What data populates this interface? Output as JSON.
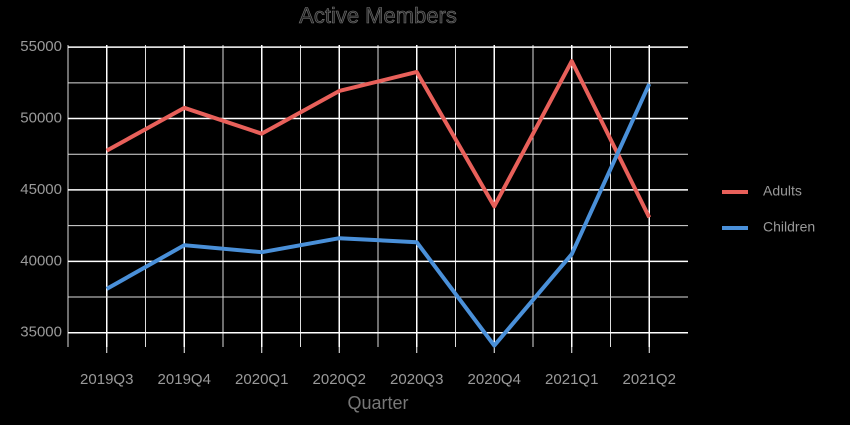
{
  "chart_data": {
    "type": "line",
    "title": "Active Members",
    "x_label": "Quarter",
    "categories": [
      "2019Q3",
      "2019Q4",
      "2020Q1",
      "2020Q2",
      "2020Q3",
      "2020Q4",
      "2021Q1",
      "2021Q2"
    ],
    "series": [
      {
        "name": "Adults",
        "color": "#e8605a",
        "values": [
          47750,
          50750,
          48940,
          51930,
          53260,
          43850,
          54020,
          43080
        ]
      },
      {
        "name": "Children",
        "color": "#4a90d9",
        "values": [
          38070,
          41130,
          40640,
          41620,
          41340,
          34100,
          40500,
          52420
        ]
      }
    ],
    "ylim": [
      34000,
      55150
    ],
    "yticks": [
      35000,
      40000,
      45000,
      50000,
      55000
    ],
    "grid": true,
    "legend": "right"
  }
}
